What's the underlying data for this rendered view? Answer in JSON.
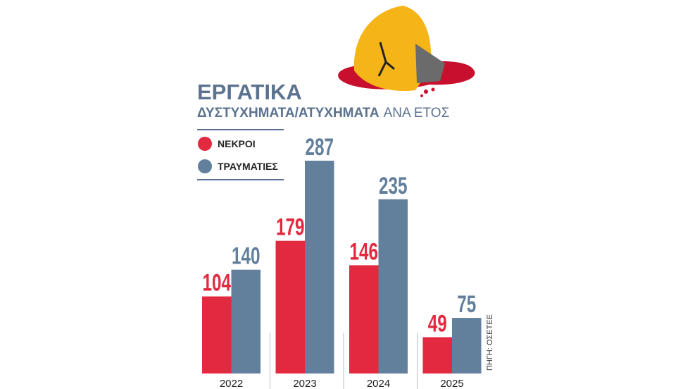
{
  "chart_data": {
    "type": "bar",
    "title": "ΕΡΓΑΤΙΚΑ",
    "subtitle": [
      "ΔΥΣΤΥΧΗΜΑΤΑ/ΑΤΥΧΗΜΑΤΑ",
      "ΑΝΑ ΕΤΟΣ"
    ],
    "source": "ΠΗΓΗ: ΟΣΕΤΕΕ",
    "categories": [
      "2022",
      "2023",
      "2024",
      "2025"
    ],
    "series": [
      {
        "name": "ΝΕΚΡΟΙ",
        "color": "#e2293f",
        "values": [
          104,
          179,
          146,
          49
        ]
      },
      {
        "name": "ΤΡΑΥΜΑΤΙΕΣ",
        "color": "#627f9b",
        "values": [
          140,
          287,
          235,
          75
        ]
      }
    ]
  }
}
